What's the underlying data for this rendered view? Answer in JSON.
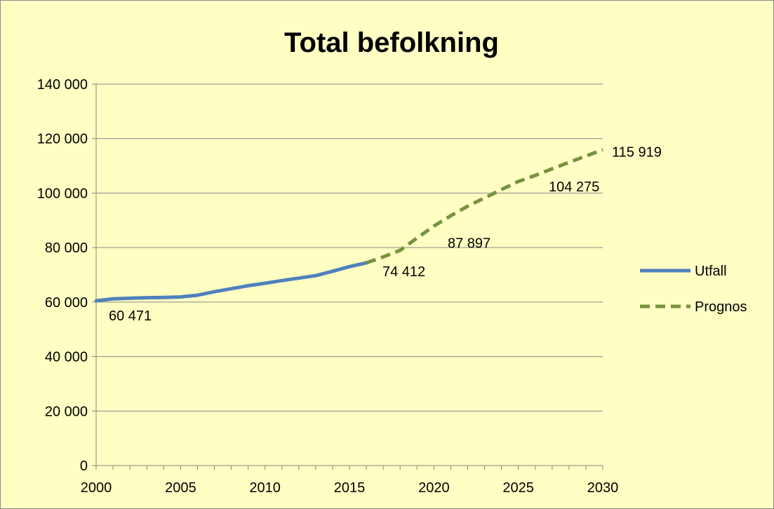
{
  "chart_data": {
    "type": "line",
    "title": "Total befolkning",
    "xlabel": "",
    "ylabel": "",
    "xlim": [
      2000,
      2030
    ],
    "ylim": [
      0,
      140000
    ],
    "x_ticks": [
      2000,
      2005,
      2010,
      2015,
      2020,
      2025,
      2030
    ],
    "x_tick_labels": [
      "2000",
      "2005",
      "2010",
      "2015",
      "2020",
      "2025",
      "2030"
    ],
    "y_ticks": [
      0,
      20000,
      40000,
      60000,
      80000,
      100000,
      120000,
      140000
    ],
    "y_tick_labels": [
      "0",
      "20 000",
      "40 000",
      "60 000",
      "80 000",
      "100 000",
      "120 000",
      "140 000"
    ],
    "grid": "horizontal",
    "legend_position": "right",
    "series": [
      {
        "name": "Utfall",
        "color": "#4f81bd",
        "style": "solid",
        "points": [
          [
            2000,
            60471
          ],
          [
            2001,
            61200
          ],
          [
            2002,
            61400
          ],
          [
            2003,
            61600
          ],
          [
            2004,
            61700
          ],
          [
            2005,
            61900
          ],
          [
            2006,
            62500
          ],
          [
            2007,
            63800
          ],
          [
            2008,
            64900
          ],
          [
            2009,
            66000
          ],
          [
            2010,
            66900
          ],
          [
            2011,
            67900
          ],
          [
            2012,
            68800
          ],
          [
            2013,
            69700
          ],
          [
            2014,
            71300
          ],
          [
            2015,
            73000
          ],
          [
            2016,
            74412
          ]
        ]
      },
      {
        "name": "Prognos",
        "color": "#77933c",
        "style": "dashed",
        "points": [
          [
            2016,
            74412
          ],
          [
            2017,
            76600
          ],
          [
            2018,
            79000
          ],
          [
            2019,
            83500
          ],
          [
            2020,
            87897
          ],
          [
            2021,
            91700
          ],
          [
            2022,
            95200
          ],
          [
            2023,
            98200
          ],
          [
            2024,
            101300
          ],
          [
            2025,
            104275
          ],
          [
            2026,
            106500
          ],
          [
            2027,
            108900
          ],
          [
            2028,
            111300
          ],
          [
            2029,
            113600
          ],
          [
            2030,
            115919
          ]
        ]
      }
    ],
    "data_labels": [
      {
        "x": 2000,
        "y": 60471,
        "text": "60 471"
      },
      {
        "x": 2016,
        "y": 74412,
        "text": "74 412"
      },
      {
        "x": 2020,
        "y": 87897,
        "text": "87 897"
      },
      {
        "x": 2025,
        "y": 104275,
        "text": "104 275"
      },
      {
        "x": 2030,
        "y": 115919,
        "text": "115 919"
      }
    ]
  }
}
